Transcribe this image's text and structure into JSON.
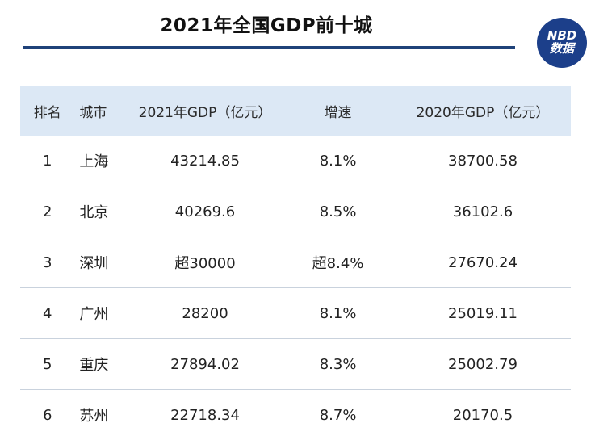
{
  "title": "2021年全国GDP前十城",
  "badge": {
    "line1": "NBD",
    "line2": "数据"
  },
  "table": {
    "headers": [
      "排名",
      "城市",
      "2021年GDP（亿元）",
      "增速",
      "2020年GDP（亿元）"
    ],
    "rows": [
      [
        "1",
        "上海",
        "43214.85",
        "8.1%",
        "38700.58"
      ],
      [
        "2",
        "北京",
        "40269.6",
        "8.5%",
        "36102.6"
      ],
      [
        "3",
        "深圳",
        "超30000",
        "超8.4%",
        "27670.24"
      ],
      [
        "4",
        "广州",
        "28200",
        "8.1%",
        "25019.11"
      ],
      [
        "5",
        "重庆",
        "27894.02",
        "8.3%",
        "25002.79"
      ],
      [
        "6",
        "苏州",
        "22718.34",
        "8.7%",
        "20170.5"
      ]
    ]
  },
  "colors": {
    "accent": "#1f4279",
    "header_bg": "#dce8f5",
    "badge": "#1c3f8a"
  }
}
